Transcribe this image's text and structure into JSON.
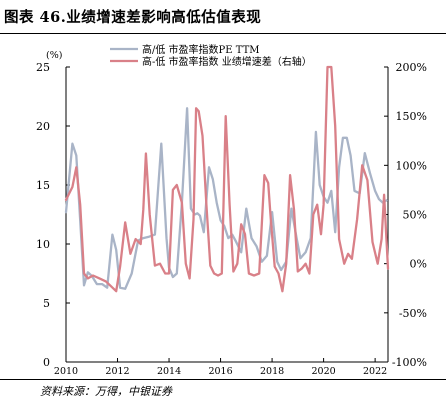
{
  "header": {
    "title": "图表 46.业绩增速差影响高低估值表现"
  },
  "footer": {
    "source": "资料来源：万得，中银证券"
  },
  "chart_data": {
    "type": "line",
    "title": "图表 46.业绩增速差影响高低估值表现",
    "left_axis_unit": "(%)",
    "legend_position": "top",
    "grid": false,
    "xlim": [
      2010,
      2022.5
    ],
    "x_ticks": [
      {
        "value": 2010,
        "label": "2010"
      },
      {
        "value": 2012,
        "label": "2012"
      },
      {
        "value": 2014,
        "label": "2014"
      },
      {
        "value": 2016,
        "label": "2016"
      },
      {
        "value": 2018,
        "label": "2018"
      },
      {
        "value": 2020,
        "label": "2020"
      },
      {
        "value": 2022,
        "label": "2022"
      }
    ],
    "ylim_left": [
      0,
      25
    ],
    "y_ticks_left": [
      {
        "value": 0,
        "label": "0"
      },
      {
        "value": 5,
        "label": "5"
      },
      {
        "value": 10,
        "label": "10"
      },
      {
        "value": 15,
        "label": "15"
      },
      {
        "value": 20,
        "label": "20"
      },
      {
        "value": 25,
        "label": "25"
      }
    ],
    "ylim_right": [
      -100,
      200
    ],
    "y_ticks_right": [
      {
        "value": -100,
        "label": "-100%"
      },
      {
        "value": -50,
        "label": "-50%"
      },
      {
        "value": 0,
        "label": "0%"
      },
      {
        "value": 50,
        "label": "50%"
      },
      {
        "value": 100,
        "label": "100%"
      },
      {
        "value": 150,
        "label": "150%"
      },
      {
        "value": 200,
        "label": "200%"
      }
    ],
    "series": [
      {
        "name": "高/低 市盈率指数PE TTM",
        "axis": "left",
        "color": "#a9b4c7",
        "x": [
          2010.0,
          2010.25,
          2010.4,
          2010.55,
          2010.7,
          2010.85,
          2011.0,
          2011.2,
          2011.4,
          2011.6,
          2011.8,
          2011.95,
          2012.1,
          2012.3,
          2012.55,
          2012.8,
          2013.0,
          2013.2,
          2013.45,
          2013.7,
          2013.9,
          2014.0,
          2014.15,
          2014.3,
          2014.5,
          2014.7,
          2014.85,
          2015.0,
          2015.1,
          2015.2,
          2015.35,
          2015.55,
          2015.7,
          2015.85,
          2016.0,
          2016.15,
          2016.3,
          2016.45,
          2016.6,
          2016.8,
          2017.0,
          2017.2,
          2017.4,
          2017.6,
          2017.8,
          2018.0,
          2018.2,
          2018.35,
          2018.55,
          2018.75,
          2018.95,
          2019.1,
          2019.3,
          2019.5,
          2019.7,
          2019.85,
          2020.0,
          2020.15,
          2020.3,
          2020.45,
          2020.6,
          2020.75,
          2020.9,
          2021.05,
          2021.2,
          2021.4,
          2021.6,
          2021.8,
          2022.0,
          2022.15,
          2022.3,
          2022.45
        ],
        "values": [
          12.7,
          18.5,
          17.5,
          12.0,
          6.5,
          7.6,
          7.3,
          6.6,
          6.6,
          6.3,
          10.8,
          9.5,
          6.3,
          6.2,
          7.5,
          10.3,
          10.5,
          10.6,
          10.8,
          18.5,
          10.5,
          8.0,
          7.2,
          7.5,
          13.5,
          21.5,
          13.0,
          12.5,
          12.6,
          12.4,
          11.0,
          16.5,
          15.5,
          13.5,
          12.0,
          11.5,
          10.5,
          10.8,
          10.2,
          9.3,
          13.0,
          10.5,
          9.8,
          8.5,
          9.0,
          12.7,
          8.5,
          7.8,
          8.5,
          13.0,
          10.5,
          8.8,
          9.3,
          10.5,
          19.5,
          15.0,
          14.0,
          13.5,
          14.5,
          11.0,
          16.5,
          19.0,
          19.0,
          17.5,
          14.5,
          14.3,
          17.7,
          16.0,
          14.5,
          13.8,
          13.5,
          13.7
        ]
      },
      {
        "name": "高-低 市盈率指数 业绩增速差（右轴）",
        "axis": "right",
        "color": "#d98088",
        "x": [
          2010.0,
          2010.25,
          2010.4,
          2010.55,
          2010.7,
          2010.85,
          2011.05,
          2011.3,
          2011.55,
          2011.75,
          2011.95,
          2012.1,
          2012.3,
          2012.5,
          2012.7,
          2012.9,
          2013.0,
          2013.1,
          2013.25,
          2013.45,
          2013.65,
          2013.85,
          2014.0,
          2014.15,
          2014.3,
          2014.5,
          2014.65,
          2014.8,
          2014.95,
          2015.05,
          2015.15,
          2015.3,
          2015.45,
          2015.6,
          2015.75,
          2015.9,
          2016.05,
          2016.2,
          2016.35,
          2016.5,
          2016.65,
          2016.8,
          2016.95,
          2017.1,
          2017.3,
          2017.5,
          2017.7,
          2017.85,
          2017.95,
          2018.1,
          2018.25,
          2018.4,
          2018.55,
          2018.7,
          2018.85,
          2019.0,
          2019.15,
          2019.3,
          2019.45,
          2019.6,
          2019.75,
          2019.9,
          2020.0,
          2020.15,
          2020.3,
          2020.45,
          2020.6,
          2020.8,
          2020.95,
          2021.1,
          2021.3,
          2021.5,
          2021.7,
          2021.9,
          2022.1,
          2022.25,
          2022.35,
          2022.5
        ],
        "values": [
          65,
          78,
          98,
          60,
          -10,
          -15,
          -12,
          -15,
          -18,
          -23,
          -28,
          -3,
          42,
          10,
          25,
          20,
          55,
          112,
          50,
          -2,
          0,
          -10,
          -10,
          75,
          80,
          62,
          0,
          -15,
          45,
          158,
          155,
          130,
          60,
          -2,
          -10,
          -12,
          -10,
          150,
          60,
          -8,
          0,
          40,
          30,
          -10,
          -12,
          -10,
          90,
          82,
          45,
          -3,
          -10,
          -28,
          0,
          90,
          55,
          -8,
          -5,
          0,
          -10,
          50,
          60,
          30,
          60,
          200,
          200,
          140,
          25,
          0,
          10,
          5,
          45,
          100,
          85,
          22,
          0,
          25,
          70,
          -5
        ]
      }
    ]
  }
}
